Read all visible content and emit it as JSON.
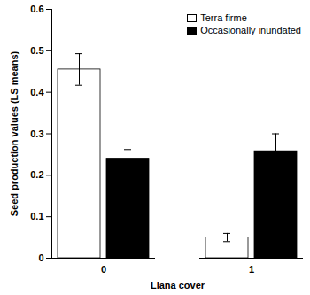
{
  "chart_data": {
    "type": "bar",
    "x_label": "Liana cover",
    "y_label": "Seed production values (LS means)",
    "categories": [
      "0",
      "1"
    ],
    "series": [
      {
        "name": "Terra firme",
        "color": "#ffffff",
        "values": [
          0.455,
          0.05
        ],
        "errors": [
          0.038,
          0.01
        ]
      },
      {
        "name": "Occasionally inundated",
        "color": "#000000",
        "values": [
          0.24,
          0.258
        ],
        "errors": [
          0.022,
          0.042
        ]
      }
    ],
    "ylim": [
      0,
      0.6
    ],
    "yticks": [
      0,
      0.1,
      0.2,
      0.3,
      0.4,
      0.5,
      0.6
    ],
    "grid": false,
    "legend": "top-right"
  }
}
